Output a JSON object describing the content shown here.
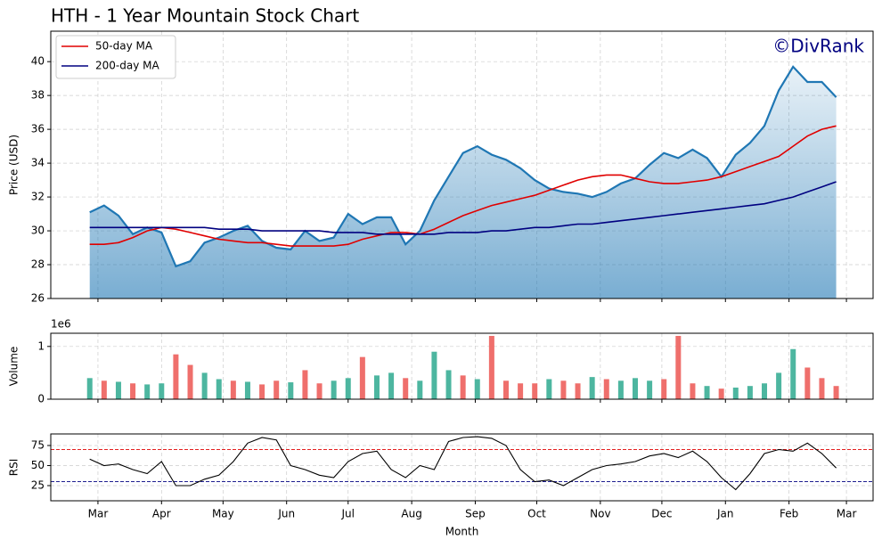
{
  "chart_data": [
    {
      "type": "line",
      "title": "HTH - 1 Year Mountain Stock Chart",
      "ylabel": "Price (USD)",
      "annotation": "©DivRank",
      "legend": "upper left",
      "grid": true,
      "fill": true,
      "color": "#1f77b4",
      "x": [
        -4,
        3,
        10,
        17,
        24,
        31,
        38,
        45,
        52,
        59,
        66,
        73,
        80,
        87,
        94,
        101,
        108,
        115,
        122,
        129,
        136,
        143,
        150,
        157,
        164,
        171,
        178,
        185,
        192,
        199,
        206,
        213,
        220,
        227,
        234,
        241,
        248,
        255,
        262,
        269,
        276,
        283,
        290,
        297,
        304,
        311,
        318,
        325,
        332,
        339,
        346,
        353,
        360
      ],
      "values": [
        31.1,
        31.5,
        30.9,
        29.8,
        30.2,
        29.9,
        27.9,
        28.2,
        29.3,
        29.6,
        30.0,
        30.3,
        29.4,
        29.0,
        28.9,
        30.0,
        29.4,
        29.6,
        31.0,
        30.4,
        30.8,
        30.8,
        29.2,
        30.0,
        31.8,
        33.2,
        34.6,
        35.0,
        34.5,
        34.2,
        33.7,
        33.0,
        32.5,
        32.3,
        32.2,
        32.0,
        32.3,
        32.8,
        33.1,
        33.9,
        34.6,
        34.3,
        34.8,
        34.3,
        33.2,
        34.5,
        35.2,
        36.2,
        38.3,
        39.7,
        38.8,
        38.8,
        37.9
      ],
      "series": [
        {
          "name": "50-day MA",
          "color": "#e00000",
          "values": [
            29.2,
            29.2,
            29.3,
            29.6,
            30.0,
            30.2,
            30.1,
            29.9,
            29.7,
            29.5,
            29.4,
            29.3,
            29.3,
            29.2,
            29.1,
            29.1,
            29.1,
            29.1,
            29.2,
            29.5,
            29.7,
            29.9,
            29.9,
            29.8,
            30.1,
            30.5,
            30.9,
            31.2,
            31.5,
            31.7,
            31.9,
            32.1,
            32.4,
            32.7,
            33.0,
            33.2,
            33.3,
            33.3,
            33.1,
            32.9,
            32.8,
            32.8,
            32.9,
            33.0,
            33.2,
            33.5,
            33.8,
            34.1,
            34.4,
            35.0,
            35.6,
            36.0,
            36.2
          ]
        },
        {
          "name": "200-day MA",
          "color": "#000080",
          "values": [
            30.2,
            30.2,
            30.2,
            30.2,
            30.2,
            30.2,
            30.2,
            30.2,
            30.2,
            30.1,
            30.1,
            30.1,
            30.0,
            30.0,
            30.0,
            30.0,
            30.0,
            29.9,
            29.9,
            29.9,
            29.8,
            29.8,
            29.8,
            29.8,
            29.8,
            29.9,
            29.9,
            29.9,
            30.0,
            30.0,
            30.1,
            30.2,
            30.2,
            30.3,
            30.4,
            30.4,
            30.5,
            30.6,
            30.7,
            30.8,
            30.9,
            31.0,
            31.1,
            31.2,
            31.3,
            31.4,
            31.5,
            31.6,
            31.8,
            32.0,
            32.3,
            32.6,
            32.9
          ]
        }
      ],
      "xlim": [
        -23,
        378
      ],
      "ylim": [
        26,
        41.8
      ],
      "yticks": [
        26,
        28,
        30,
        32,
        34,
        36,
        38,
        40
      ]
    },
    {
      "type": "bar",
      "ylabel": "Volume",
      "offset_label": "1e6",
      "grid": true,
      "x": [
        -4,
        3,
        10,
        17,
        24,
        31,
        38,
        45,
        52,
        59,
        66,
        73,
        80,
        87,
        94,
        101,
        108,
        115,
        122,
        129,
        136,
        143,
        150,
        157,
        164,
        171,
        178,
        185,
        192,
        199,
        206,
        213,
        220,
        227,
        234,
        241,
        248,
        255,
        262,
        269,
        276,
        283,
        290,
        297,
        304,
        311,
        318,
        325,
        332,
        339,
        346,
        353,
        360
      ],
      "values": [
        400000,
        350000,
        330000,
        300000,
        280000,
        300000,
        850000,
        650000,
        500000,
        380000,
        350000,
        330000,
        280000,
        350000,
        320000,
        550000,
        300000,
        350000,
        400000,
        800000,
        450000,
        500000,
        400000,
        350000,
        900000,
        550000,
        450000,
        380000,
        1200000,
        350000,
        300000,
        300000,
        380000,
        350000,
        300000,
        420000,
        380000,
        350000,
        400000,
        350000,
        380000,
        1200000,
        300000,
        250000,
        200000,
        220000,
        250000,
        300000,
        500000,
        950000,
        600000,
        400000,
        250000
      ],
      "colors": [
        "#4db6a0",
        "#ef6f6c",
        "#4db6a0",
        "#ef6f6c",
        "#4db6a0",
        "#4db6a0",
        "#ef6f6c",
        "#ef6f6c",
        "#4db6a0",
        "#4db6a0",
        "#ef6f6c",
        "#4db6a0",
        "#ef6f6c",
        "#ef6f6c",
        "#4db6a0",
        "#ef6f6c",
        "#ef6f6c",
        "#4db6a0",
        "#4db6a0",
        "#ef6f6c",
        "#4db6a0",
        "#4db6a0",
        "#ef6f6c",
        "#4db6a0",
        "#4db6a0",
        "#4db6a0",
        "#ef6f6c",
        "#4db6a0",
        "#ef6f6c",
        "#ef6f6c",
        "#ef6f6c",
        "#ef6f6c",
        "#4db6a0",
        "#ef6f6c",
        "#ef6f6c",
        "#4db6a0",
        "#ef6f6c",
        "#4db6a0",
        "#4db6a0",
        "#4db6a0",
        "#ef6f6c",
        "#ef6f6c",
        "#ef6f6c",
        "#4db6a0",
        "#ef6f6c",
        "#4db6a0",
        "#4db6a0",
        "#4db6a0",
        "#4db6a0",
        "#4db6a0",
        "#ef6f6c",
        "#ef6f6c",
        "#ef6f6c"
      ],
      "xlim": [
        -23,
        378
      ],
      "ylim": [
        0,
        1250000
      ],
      "yticks": [
        0,
        {
          "value": 1000000,
          "label": "1"
        }
      ]
    },
    {
      "type": "line",
      "ylabel": "RSI",
      "xlabel": "Month",
      "grid": true,
      "color": "#000000",
      "x": [
        -4,
        3,
        10,
        17,
        24,
        31,
        38,
        45,
        52,
        59,
        66,
        73,
        80,
        87,
        94,
        101,
        108,
        115,
        122,
        129,
        136,
        143,
        150,
        157,
        164,
        171,
        178,
        185,
        192,
        199,
        206,
        213,
        220,
        227,
        234,
        241,
        248,
        255,
        262,
        269,
        276,
        283,
        290,
        297,
        304,
        311,
        318,
        325,
        332,
        339,
        346,
        353,
        360
      ],
      "values": [
        58,
        50,
        52,
        45,
        40,
        55,
        25,
        25,
        33,
        38,
        55,
        78,
        85,
        82,
        50,
        45,
        38,
        35,
        55,
        65,
        68,
        45,
        35,
        50,
        45,
        80,
        85,
        86,
        84,
        75,
        45,
        30,
        32,
        25,
        35,
        45,
        50,
        52,
        55,
        62,
        65,
        60,
        68,
        55,
        35,
        20,
        40,
        65,
        70,
        68,
        78,
        65,
        47
      ],
      "hlines": [
        {
          "value": 70,
          "color": "#e00000"
        },
        {
          "value": 30,
          "color": "#000080"
        }
      ],
      "xlim": [
        -23,
        378
      ],
      "ylim": [
        6.1,
        89.4
      ],
      "yticks": [
        25,
        50,
        75
      ],
      "xticks": [
        {
          "value": 0,
          "label": "Mar"
        },
        {
          "value": 31,
          "label": "Apr"
        },
        {
          "value": 61,
          "label": "May"
        },
        {
          "value": 92,
          "label": "Jun"
        },
        {
          "value": 122,
          "label": "Jul"
        },
        {
          "value": 153,
          "label": "Aug"
        },
        {
          "value": 184,
          "label": "Sep"
        },
        {
          "value": 214,
          "label": "Oct"
        },
        {
          "value": 245,
          "label": "Nov"
        },
        {
          "value": 275,
          "label": "Dec"
        },
        {
          "value": 306,
          "label": "Jan"
        },
        {
          "value": 337,
          "label": "Feb"
        },
        {
          "value": 365,
          "label": "Mar"
        }
      ]
    }
  ]
}
